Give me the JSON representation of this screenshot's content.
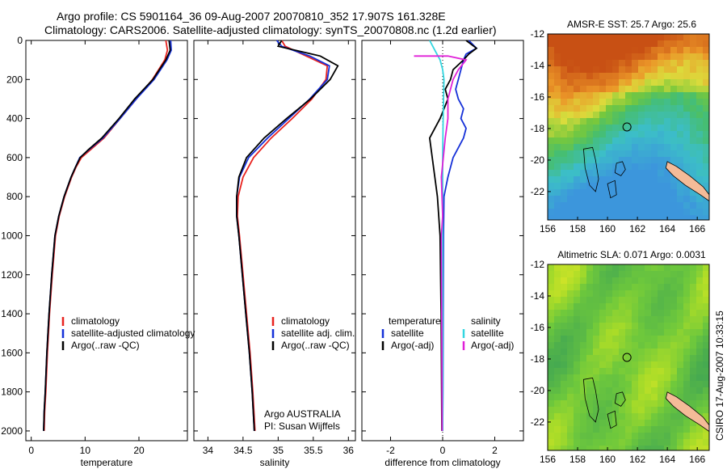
{
  "header": {
    "line1": "Argo profile: CS 5901164_36 09-Aug-2007 20070810_352 17.907S 161.328E",
    "line2": "Climatology: CARS2006. Satellite-adjusted climatology: synTS_20070808.nc (1.2d earlier)"
  },
  "side_caption": "CSIRO 17-Aug-2007 10:33:15",
  "colors": {
    "climatology": "#e8231f",
    "satellite": "#1530d8",
    "argo": "#000000",
    "cyan": "#33d6e0",
    "magenta": "#e020d8",
    "coast": "#f4bb98"
  },
  "chart_data": [
    {
      "type": "line",
      "xlabel": "temperature",
      "ylabel": "",
      "xlim": [
        -1,
        29
      ],
      "ylim": [
        2050,
        0
      ],
      "xticks": [
        0,
        10,
        20
      ],
      "yticks": [
        0,
        200,
        400,
        600,
        800,
        1000,
        1200,
        1400,
        1600,
        1800,
        2000
      ],
      "legend": [
        "climatology",
        "satellite-adjusted climatology",
        "Argo(..raw -QC)"
      ],
      "series": [
        {
          "name": "climatology",
          "color": "#e8231f",
          "x": [
            25.0,
            25.3,
            24.8,
            22.5,
            19.5,
            16.5,
            13.5,
            11.0,
            9.3,
            8.3,
            7.5,
            6.2,
            5.2,
            4.5,
            3.9,
            3.4,
            3.0,
            2.7,
            2.5,
            2.4
          ],
          "y": [
            0,
            50,
            100,
            200,
            300,
            400,
            500,
            560,
            600,
            650,
            700,
            800,
            900,
            1000,
            1200,
            1400,
            1600,
            1800,
            1900,
            2000
          ]
        },
        {
          "name": "satellite-adjusted climatology",
          "color": "#1530d8",
          "x": [
            25.9,
            26.0,
            25.2,
            22.8,
            19.5,
            16.5,
            13.3,
            10.7,
            9.0,
            8.2,
            7.4,
            6.1,
            5.1,
            4.4,
            3.8,
            3.3,
            2.9,
            2.6,
            2.4,
            2.3
          ],
          "y": [
            0,
            50,
            100,
            200,
            300,
            400,
            500,
            560,
            600,
            650,
            700,
            800,
            900,
            1000,
            1200,
            1400,
            1600,
            1800,
            1900,
            2000
          ]
        },
        {
          "name": "Argo(..raw -QC)",
          "color": "#000000",
          "x": [
            25.6,
            25.8,
            25.0,
            22.6,
            19.2,
            16.3,
            13.1,
            10.6,
            9.1,
            8.2,
            7.4,
            6.1,
            5.1,
            4.4,
            3.8,
            3.3,
            2.9,
            2.6,
            2.4,
            2.3
          ],
          "y": [
            0,
            50,
            100,
            200,
            300,
            400,
            500,
            560,
            600,
            650,
            700,
            800,
            900,
            1000,
            1200,
            1400,
            1600,
            1800,
            1900,
            2000
          ]
        }
      ]
    },
    {
      "type": "line",
      "xlabel": "salinity",
      "xlim": [
        33.8,
        36.1
      ],
      "ylim": [
        2050,
        0
      ],
      "xticks": [
        34,
        34.5,
        35,
        35.5,
        36
      ],
      "legend": [
        "climatology",
        "satellite adj. clim.",
        "Argo(..raw -QC)"
      ],
      "annotation": [
        "Argo AUSTRALIA",
        "PI: Susan Wijffels"
      ],
      "series": [
        {
          "name": "climatology",
          "color": "#e8231f",
          "x": [
            35.05,
            35.1,
            35.4,
            35.7,
            35.68,
            35.48,
            35.2,
            34.9,
            34.65,
            34.5,
            34.43,
            34.42,
            34.45,
            34.5,
            34.55,
            34.6,
            34.64,
            34.67
          ],
          "y": [
            0,
            30,
            80,
            130,
            200,
            300,
            400,
            500,
            600,
            700,
            800,
            900,
            1000,
            1200,
            1400,
            1600,
            1800,
            2000
          ]
        },
        {
          "name": "satellite adj. clim.",
          "color": "#1530d8",
          "x": [
            34.98,
            35.05,
            35.45,
            35.73,
            35.7,
            35.45,
            35.15,
            34.85,
            34.58,
            34.45,
            34.41,
            34.41,
            34.44,
            34.49,
            34.54,
            34.59,
            34.63,
            34.66
          ],
          "y": [
            0,
            30,
            80,
            130,
            200,
            300,
            400,
            500,
            600,
            700,
            800,
            900,
            1000,
            1200,
            1400,
            1600,
            1800,
            2000
          ]
        },
        {
          "name": "Argo(..raw -QC)",
          "color": "#000000",
          "x": [
            35.05,
            35.0,
            35.6,
            35.85,
            35.74,
            35.46,
            35.12,
            34.8,
            34.55,
            34.44,
            34.41,
            34.41,
            34.44,
            34.49,
            34.54,
            34.59,
            34.63,
            34.66
          ],
          "y": [
            0,
            30,
            80,
            130,
            200,
            300,
            400,
            500,
            600,
            700,
            800,
            900,
            1000,
            1200,
            1400,
            1600,
            1800,
            2000
          ]
        }
      ]
    },
    {
      "type": "line",
      "xlabel": "difference from climatology",
      "xlim": [
        -3.1,
        3.1
      ],
      "ylim": [
        2050,
        0
      ],
      "xticks": [
        -2,
        0,
        2
      ],
      "legend_left": [
        "temperature",
        "satellite",
        "Argo(-adj)"
      ],
      "legend_right": [
        "salinity",
        "satellite",
        "Argo(-adj)"
      ],
      "series": [
        {
          "name": "temperature satellite",
          "color": "#1530d8",
          "x": [
            1.0,
            1.3,
            0.9,
            0.8,
            0.7,
            0.6,
            0.5,
            0.6,
            0.8,
            0.7,
            0.9,
            0.8,
            0.4,
            0.2,
            0.05,
            0.03,
            0.02,
            0.01,
            0.0
          ],
          "y": [
            0,
            40,
            70,
            100,
            150,
            200,
            250,
            300,
            350,
            400,
            450,
            500,
            600,
            700,
            800,
            1000,
            1400,
            1800,
            2000
          ]
        },
        {
          "name": "temperature Argo(-adj)",
          "color": "#000000",
          "x": [
            0.9,
            1.3,
            1.0,
            0.8,
            0.4,
            0.3,
            0.1,
            0.2,
            -0.1,
            -0.3,
            -0.5,
            -0.4,
            -0.3,
            -0.2,
            -0.1,
            -0.08,
            -0.06,
            -0.04,
            -0.03
          ],
          "y": [
            0,
            40,
            70,
            100,
            150,
            200,
            250,
            300,
            400,
            450,
            500,
            600,
            700,
            800,
            1000,
            1200,
            1400,
            1800,
            2000
          ]
        },
        {
          "name": "salinity satellite",
          "color": "#33d6e0",
          "x": [
            -0.5,
            -0.3,
            -0.1,
            0.0,
            0.05,
            0.02,
            0.0,
            0.0,
            0.0,
            0.0
          ],
          "y": [
            0,
            50,
            100,
            150,
            200,
            400,
            600,
            1000,
            1500,
            2000
          ]
        },
        {
          "name": "salinity Argo(-adj)",
          "color": "#e020d8",
          "x": [
            -1.1,
            0.2,
            0.9,
            0.6,
            0.4,
            0.3,
            0.2,
            0.2,
            0.1,
            -0.05,
            0.0,
            -0.05,
            -0.03,
            -0.02
          ],
          "y": [
            80,
            80,
            100,
            150,
            200,
            250,
            300,
            400,
            500,
            700,
            900,
            1000,
            1500,
            2000
          ]
        }
      ]
    }
  ],
  "maps": [
    {
      "title": "AMSR-E SST: 25.7 Argo: 25.6",
      "xticks": [
        "156",
        "158",
        "160",
        "162",
        "164",
        "166"
      ],
      "yticks": [
        "-12",
        "-14",
        "-16",
        "-18",
        "-20",
        "-22"
      ],
      "lon_range": [
        156,
        166.8
      ],
      "lat_range": [
        -23.8,
        -12
      ],
      "marker": {
        "lon": 161.3,
        "lat": -17.9
      },
      "field": "sst"
    },
    {
      "title": "Altimetric SLA: 0.071 Argo: 0.0031",
      "xticks": [
        "156",
        "158",
        "160",
        "162",
        "164",
        "166"
      ],
      "yticks": [
        "-12",
        "-14",
        "-16",
        "-18",
        "-20",
        "-22"
      ],
      "lon_range": [
        156,
        166.8
      ],
      "lat_range": [
        -23.8,
        -12
      ],
      "marker": {
        "lon": 161.3,
        "lat": -17.9
      },
      "field": "sla"
    }
  ]
}
